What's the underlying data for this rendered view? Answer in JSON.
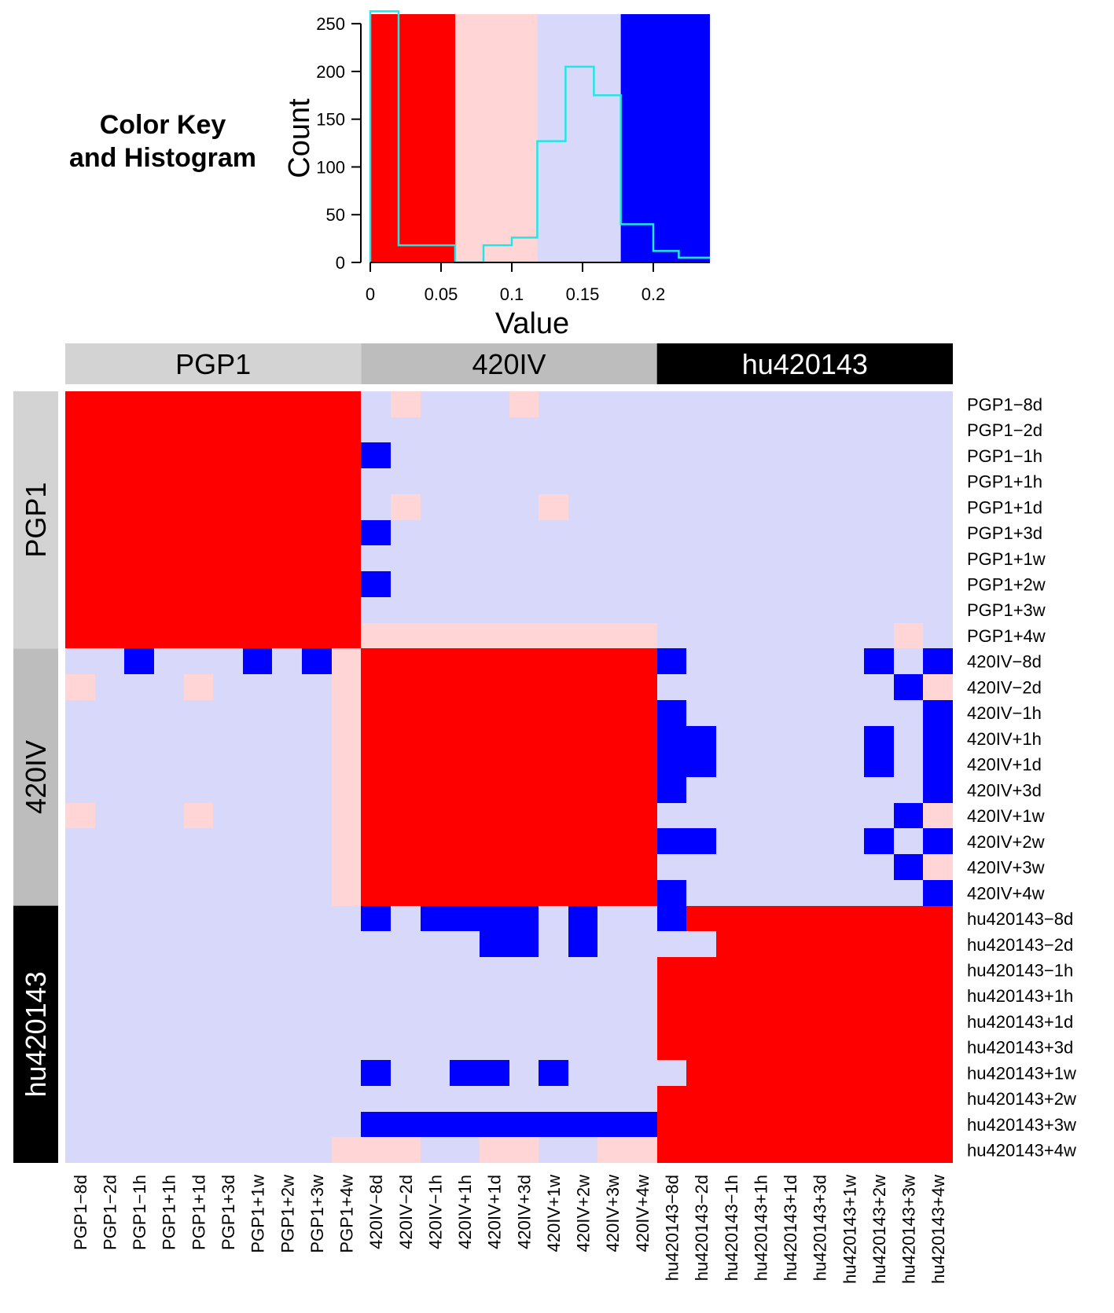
{
  "color_key": {
    "title_line1": "Color Key",
    "title_line2": "and Histogram"
  },
  "chart_data": [
    {
      "type": "histogram",
      "title": "Color Key and Histogram",
      "xlabel": "Value",
      "ylabel": "Count",
      "xlim": [
        0,
        0.24
      ],
      "ylim": [
        0,
        260
      ],
      "x_ticks": [
        0,
        0.05,
        0.1,
        0.15,
        0.2
      ],
      "x_tick_labels": [
        "0",
        "0.05",
        "0.1",
        "0.15",
        "0.2"
      ],
      "y_ticks": [
        0,
        50,
        100,
        150,
        200,
        250
      ],
      "y_tick_labels": [
        "0",
        "50",
        "100",
        "150",
        "200",
        "250"
      ],
      "color_breaks": [
        {
          "from": 0,
          "to": 0.06,
          "color": "#ff0000"
        },
        {
          "from": 0.06,
          "to": 0.118,
          "color": "#ffd5d5"
        },
        {
          "from": 0.118,
          "to": 0.177,
          "color": "#d8d8fa"
        },
        {
          "from": 0.177,
          "to": 0.24,
          "color": "#0000ff"
        }
      ],
      "histogram_color": "#22e6e6",
      "bins": [
        {
          "from": 0,
          "to": 0.02,
          "count": 263
        },
        {
          "from": 0.02,
          "to": 0.06,
          "count": 18
        },
        {
          "from": 0.06,
          "to": 0.08,
          "count": 0
        },
        {
          "from": 0.08,
          "to": 0.1,
          "count": 18
        },
        {
          "from": 0.1,
          "to": 0.118,
          "count": 26
        },
        {
          "from": 0.118,
          "to": 0.138,
          "count": 127
        },
        {
          "from": 0.138,
          "to": 0.158,
          "count": 205
        },
        {
          "from": 0.158,
          "to": 0.177,
          "count": 175
        },
        {
          "from": 0.177,
          "to": 0.2,
          "count": 40
        },
        {
          "from": 0.2,
          "to": 0.218,
          "count": 12
        },
        {
          "from": 0.218,
          "to": 0.24,
          "count": 5
        }
      ]
    },
    {
      "type": "heatmap",
      "palette": {
        "r": "#ff0000",
        "p": "#ffd5d5",
        "l": "#d8d8fa",
        "b": "#0000ff"
      },
      "groups": [
        {
          "name": "PGP1",
          "size": 10,
          "color": "#d3d3d3",
          "text_color": "#000000"
        },
        {
          "name": "420IV",
          "size": 10,
          "color": "#bdbdbd",
          "text_color": "#000000"
        },
        {
          "name": "hu420143",
          "size": 10,
          "color": "#000000",
          "text_color": "#ffffff"
        }
      ],
      "row_labels": [
        "PGP1−8d",
        "PGP1−2d",
        "PGP1−1h",
        "PGP1+1h",
        "PGP1+1d",
        "PGP1+3d",
        "PGP1+1w",
        "PGP1+2w",
        "PGP1+3w",
        "PGP1+4w",
        "420IV−8d",
        "420IV−2d",
        "420IV−1h",
        "420IV+1h",
        "420IV+1d",
        "420IV+3d",
        "420IV+1w",
        "420IV+2w",
        "420IV+3w",
        "420IV+4w",
        "hu420143−8d",
        "hu420143−2d",
        "hu420143−1h",
        "hu420143+1h",
        "hu420143+1d",
        "hu420143+3d",
        "hu420143+1w",
        "hu420143+2w",
        "hu420143+3w",
        "hu420143+4w"
      ],
      "col_labels": [
        "PGP1−8d",
        "PGP1−2d",
        "PGP1−1h",
        "PGP1+1h",
        "PGP1+1d",
        "PGP1+3d",
        "PGP1+1w",
        "PGP1+2w",
        "PGP1+3w",
        "PGP1+4w",
        "420IV−8d",
        "420IV−2d",
        "420IV−1h",
        "420IV+1h",
        "420IV+1d",
        "420IV+3d",
        "420IV+1w",
        "420IV+2w",
        "420IV+3w",
        "420IV+4w",
        "hu420143−8d",
        "hu420143−2d",
        "hu420143−1h",
        "hu420143+1h",
        "hu420143+1d",
        "hu420143+3d",
        "hu420143+1w",
        "hu420143+2w",
        "hu420143+3w",
        "hu420143+4w"
      ],
      "cell_legend": "r = value in [0, 0.06), p = [0.06, 0.118), l = [0.118, 0.177), b = [0.177, 0.24]",
      "cells": [
        "rrrrrrrrrrlplllplllllllllllll",
        "rrrrrrrrrrllllllllllllllllllll",
        "rrrrrrrrrrblllllllllllllllllll",
        "rrrrrrrrrrllllllllllllllllllll",
        "rrrrrrrrrrlpllllplllllllllllll",
        "rrrrrrrrrrblllllllllllllllllll",
        "rrrrrrrrrrllllllllllllllllllll",
        "rrrrrrrrrrblllllllllllllllllll",
        "rrrrrrrrrrllllllllllllllllllll",
        "rrrrrrrrrrppppppppppllllllllp",
        "llblllblbprrrrrrrrrrbllllllblbp",
        "plllpllllprrrrrrrrrrllllllllbp",
        "lllllllllprrrrrrrrrrbllllllllbl",
        "lllllllllprrrrrrrrrrbblllllblbl",
        "lllllllllprrrrrrrrrrbblllllblbl",
        "lllllllllprrrrrrrrrrbllllllllbp",
        "plllpllllprrrrrrrrrrllllllllbp",
        "lllllllllprrrrrrrrrrbblllllblbl",
        "lllllllllprrrrrrrrrrllllllllbp",
        "lllllllllprrrrrrrrrrbllllllllbp",
        "llllllllllblbbbblbllbrrrrrrrrrr",
        "llllllllllllllbblbllllrrrrrrrrrr",
        "llllllllllllllllllllrrrrrrrrrr",
        "llllllllllllllllllllrrrrrrrrrr",
        "llllllllllllllllllllrrrrrrrrrr",
        "llllllllllllllllllllrrrrrrrrrr",
        "llllllllllbllbblbllllrrrrrrrrrr",
        "llllllllllllllllllllrrrrrrrrrr",
        "llllllllllbbbbbbbbbbrrrrrrrrrr",
        "lllllllllpppllppllpprrrrrrrrrr"
      ]
    }
  ]
}
